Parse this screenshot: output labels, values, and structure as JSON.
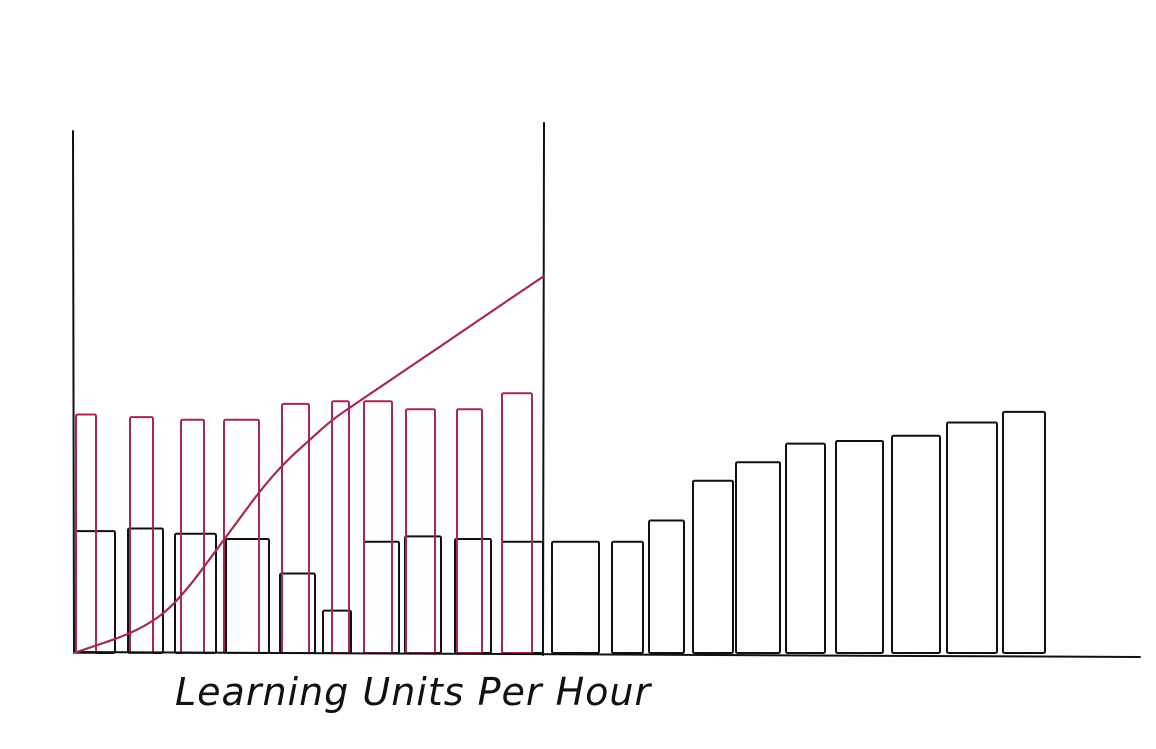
{
  "caption": "Learning Units Per Hour",
  "colors": {
    "accent": "#a6275a",
    "ink": "#111111",
    "background": "#ffffff"
  },
  "chart_data": {
    "type": "bar",
    "caption": "Learning Units Per Hour",
    "ylim": [
      0,
      100
    ],
    "grid": false,
    "legend": "none",
    "series": [
      {
        "values": [
          23,
          23.5,
          22.5,
          21.5,
          15,
          8,
          21,
          22,
          21.5,
          21,
          21,
          21,
          25,
          32.5,
          36,
          39.5,
          40,
          41,
          43.5,
          45.5
        ]
      },
      {
        "values": [
          45,
          44.5,
          44,
          44,
          47,
          47.5,
          47.5,
          46,
          46,
          49
        ]
      },
      {
        "type": "line",
        "x": [
          0,
          0.5,
          1,
          1.5,
          2,
          2.5,
          3,
          3.5,
          4,
          4.5,
          5,
          5.5,
          6,
          6.5,
          7,
          7.5,
          8,
          8.5,
          9,
          9.5,
          10
        ],
        "values": [
          0,
          1.5,
          3,
          5,
          8,
          13,
          19,
          25,
          31,
          36,
          40,
          44,
          47,
          50,
          53,
          56,
          59,
          62,
          65,
          68,
          71
        ]
      }
    ]
  }
}
